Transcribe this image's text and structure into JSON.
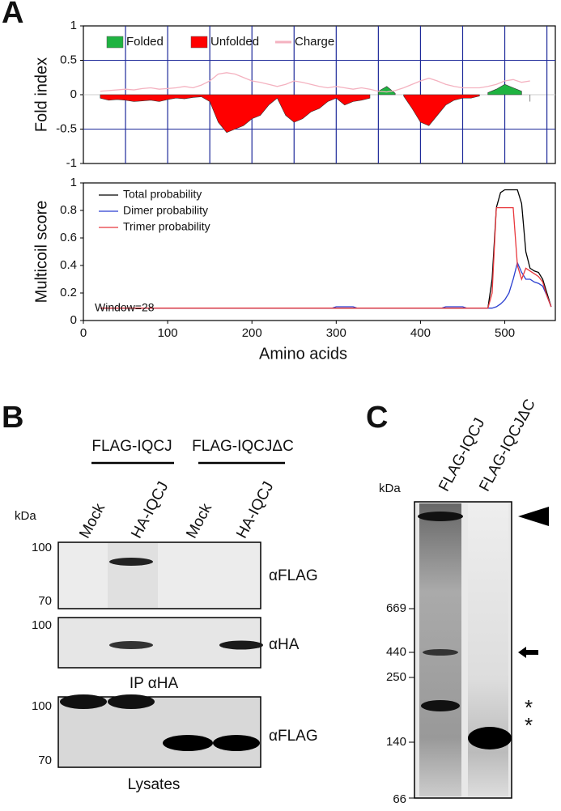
{
  "panels": {
    "a": "A",
    "b": "B",
    "c": "C"
  },
  "chart_data": [
    {
      "type": "area",
      "ylabel": "Fold index",
      "x": [
        20,
        30,
        40,
        50,
        60,
        70,
        80,
        90,
        100,
        110,
        120,
        130,
        140,
        150,
        160,
        170,
        180,
        190,
        200,
        210,
        220,
        230,
        240,
        250,
        260,
        270,
        280,
        290,
        300,
        310,
        320,
        330,
        340,
        350,
        360,
        370,
        380,
        390,
        400,
        410,
        420,
        430,
        440,
        450,
        460,
        470,
        480,
        490,
        500,
        510,
        520,
        530
      ],
      "xlim": [
        0,
        560
      ],
      "xticks": [
        50,
        100,
        150,
        200,
        250,
        300,
        350,
        400,
        450,
        500,
        550
      ],
      "xtick_labels": false,
      "ylim": [
        -1,
        1
      ],
      "yticks": [
        -1,
        -0.5,
        0,
        0.5,
        1
      ],
      "grid": true,
      "series": [
        {
          "name": "Folded",
          "color": "#1fb341",
          "kind": "area",
          "values": [
            null,
            null,
            null,
            null,
            null,
            null,
            null,
            null,
            null,
            null,
            null,
            null,
            null,
            null,
            null,
            null,
            null,
            null,
            null,
            null,
            null,
            null,
            null,
            null,
            null,
            null,
            null,
            null,
            null,
            null,
            null,
            null,
            null,
            0.05,
            0.12,
            0.02,
            null,
            null,
            null,
            null,
            null,
            null,
            null,
            null,
            null,
            null,
            0.03,
            0.08,
            0.15,
            0.1,
            0.05,
            null
          ]
        },
        {
          "name": "Unfolded",
          "color": "#ff0000",
          "kind": "area",
          "values": [
            -0.05,
            -0.08,
            -0.07,
            -0.08,
            -0.1,
            -0.09,
            -0.08,
            -0.1,
            -0.07,
            -0.05,
            -0.06,
            -0.04,
            -0.03,
            -0.1,
            -0.4,
            -0.55,
            -0.5,
            -0.45,
            -0.35,
            -0.3,
            -0.15,
            -0.05,
            -0.3,
            -0.4,
            -0.35,
            -0.25,
            -0.2,
            -0.1,
            -0.05,
            -0.15,
            -0.1,
            -0.08,
            -0.05,
            null,
            null,
            null,
            -0.02,
            -0.2,
            -0.4,
            -0.45,
            -0.3,
            -0.15,
            -0.08,
            -0.05,
            -0.05,
            -0.02,
            null,
            null,
            null,
            null,
            null,
            -0.1
          ]
        },
        {
          "name": "Charge",
          "color": "#f4b2c0",
          "kind": "line",
          "values": [
            0.05,
            0.06,
            0.07,
            0.08,
            0.07,
            0.09,
            0.1,
            0.08,
            0.09,
            0.1,
            0.12,
            0.1,
            0.14,
            0.2,
            0.3,
            0.32,
            0.3,
            0.25,
            0.2,
            0.18,
            0.15,
            0.12,
            0.15,
            0.2,
            0.18,
            0.15,
            0.12,
            0.1,
            0.12,
            0.1,
            0.08,
            0.1,
            0.08,
            0.05,
            0.04,
            0.06,
            0.1,
            0.15,
            0.2,
            0.24,
            0.2,
            0.15,
            0.12,
            0.1,
            0.1,
            0.1,
            0.12,
            0.15,
            0.2,
            0.22,
            0.18,
            0.2
          ]
        }
      ]
    },
    {
      "type": "line",
      "ylabel": "Multicoil score",
      "xlabel": "Amino acids",
      "annotation": "Window=28",
      "x": [
        20,
        100,
        200,
        295,
        300,
        320,
        325,
        425,
        430,
        450,
        455,
        480,
        485,
        490,
        495,
        500,
        505,
        510,
        515,
        520,
        525,
        530,
        535,
        540,
        545,
        550,
        555
      ],
      "xlim": [
        0,
        560
      ],
      "xticks": [
        0,
        100,
        200,
        300,
        400,
        500
      ],
      "xtick_labels": true,
      "ylim": [
        0,
        1
      ],
      "yticks": [
        0,
        0.2,
        0.4,
        0.6,
        0.8,
        1
      ],
      "grid": false,
      "series": [
        {
          "name": "Total probability",
          "color": "#000000",
          "kind": "line",
          "values": [
            0.09,
            0.09,
            0.09,
            0.09,
            0.09,
            0.09,
            0.09,
            0.09,
            0.09,
            0.09,
            0.09,
            0.09,
            0.3,
            0.82,
            0.93,
            0.95,
            0.95,
            0.95,
            0.95,
            0.85,
            0.5,
            0.38,
            0.36,
            0.35,
            0.3,
            0.2,
            0.1
          ]
        },
        {
          "name": "Dimer probability",
          "color": "#2a3fd0",
          "kind": "line",
          "values": [
            0.09,
            0.09,
            0.09,
            0.09,
            0.1,
            0.1,
            0.09,
            0.09,
            0.1,
            0.1,
            0.09,
            0.09,
            0.09,
            0.1,
            0.12,
            0.15,
            0.2,
            0.3,
            0.42,
            0.35,
            0.3,
            0.3,
            0.28,
            0.27,
            0.25,
            0.18,
            0.1
          ]
        },
        {
          "name": "Trimer probability",
          "color": "#e8383d",
          "kind": "line",
          "values": [
            0.09,
            0.09,
            0.09,
            0.09,
            0.09,
            0.09,
            0.09,
            0.09,
            0.09,
            0.09,
            0.09,
            0.09,
            0.2,
            0.82,
            0.82,
            0.82,
            0.82,
            0.82,
            0.4,
            0.3,
            0.38,
            0.36,
            0.34,
            0.32,
            0.28,
            0.18,
            0.1
          ]
        }
      ]
    }
  ],
  "panel_b": {
    "groups": [
      "FLAG-IQCJ",
      "FLAG-IQCJΔC"
    ],
    "lanes": [
      "Mock",
      "HA-IQCJ",
      "Mock",
      "HA-IQCJ"
    ],
    "kda": "kDa",
    "blots": [
      {
        "markers": [
          100,
          70
        ],
        "antibody": "αFLAG"
      },
      {
        "markers": [
          100
        ],
        "antibody": "αHA",
        "caption": "IP αHA"
      },
      {
        "markers": [
          100,
          70
        ],
        "antibody": "αFLAG",
        "caption": "Lysates"
      }
    ]
  },
  "panel_c": {
    "lanes": [
      "FLAG-IQCJ",
      "FLAG-IQCJΔC"
    ],
    "kda": "kDa",
    "markers": [
      669,
      440,
      250,
      140,
      66
    ],
    "asterisks": [
      "*",
      "*"
    ]
  }
}
